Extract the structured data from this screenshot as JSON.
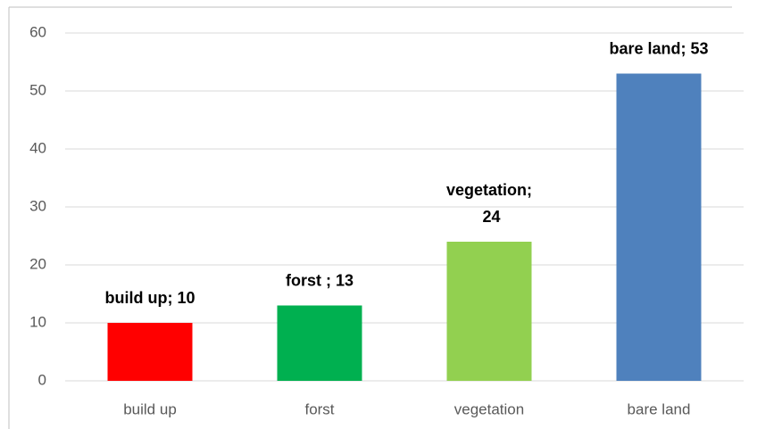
{
  "chart_data": {
    "type": "bar",
    "categories": [
      "build up",
      "forst",
      "vegetation",
      "bare land"
    ],
    "values": [
      10,
      13,
      24,
      53
    ],
    "value_labels": [
      "build up; 10",
      "forst ; 13",
      "vegetation; 24",
      "bare land; 53"
    ],
    "colors": [
      "#ff0000",
      "#00b050",
      "#92d050",
      "#4f81bd"
    ],
    "ylim": [
      0,
      60
    ],
    "yticks": [
      0,
      10,
      20,
      30,
      40,
      50,
      60
    ],
    "grid": true
  }
}
